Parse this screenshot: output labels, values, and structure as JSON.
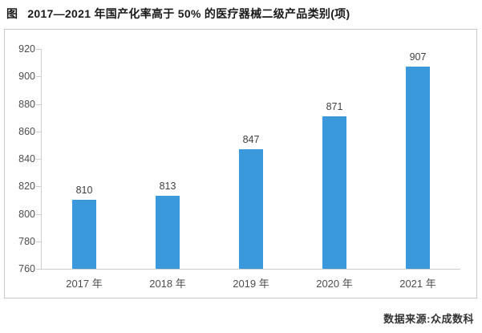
{
  "figure": {
    "title_prefix": "图",
    "title": "2017—2021 年国产化率高于 50% 的医疗器械二级产品类别(项)",
    "source": "数据来源:众成数科"
  },
  "chart_data": {
    "type": "bar",
    "title": "2017—2021 年国产化率高于 50% 的医疗器械二级产品类别(项)",
    "categories": [
      "2017 年",
      "2018 年",
      "2019 年",
      "2020 年",
      "2021 年"
    ],
    "values": [
      810,
      813,
      847,
      871,
      907
    ],
    "value_labels_shown": true,
    "xlabel": "",
    "ylabel": "",
    "ylim": [
      760,
      920
    ],
    "yticks": [
      760,
      780,
      800,
      820,
      840,
      860,
      880,
      900,
      920
    ],
    "grid": false,
    "legend": "none",
    "bar_color": "#3999db",
    "axis_color": "#cccccc",
    "source": "数据来源:众成数科"
  }
}
